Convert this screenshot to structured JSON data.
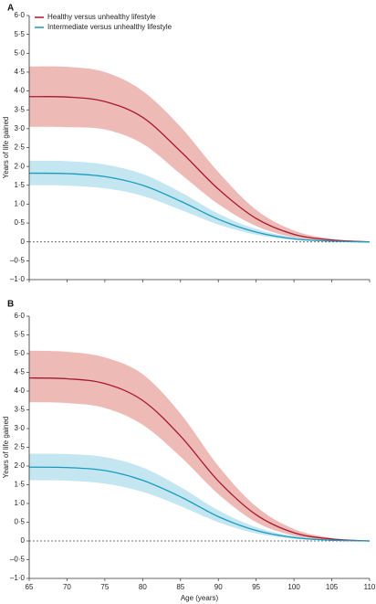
{
  "chart_data": [
    {
      "panel": "A",
      "type": "line",
      "xlabel": "",
      "ylabel": "Years of life gained",
      "xlim": [
        65,
        110
      ],
      "ylim": [
        -1.0,
        6.0
      ],
      "yticks": [
        -1.0,
        -0.5,
        0,
        0.5,
        1.0,
        1.5,
        2.0,
        2.5,
        3.0,
        3.5,
        4.0,
        4.5,
        5.0,
        5.5,
        6.0
      ],
      "ytick_labels": [
        "–1·0",
        "–0·5",
        "0",
        "0·5",
        "1·0",
        "1·5",
        "2·0",
        "2·5",
        "3·0",
        "3·5",
        "4·0",
        "4·5",
        "5·0",
        "5·5",
        "6·0"
      ],
      "reference_line": 0,
      "legend": {
        "position": "top-left",
        "entries": [
          "Healthy versus unhealthy lifestyle",
          "Intermediate versus unhealthy lifestyle"
        ]
      },
      "x": [
        65,
        70,
        75,
        80,
        85,
        90,
        95,
        100,
        105,
        110
      ],
      "series": [
        {
          "name": "Healthy versus unhealthy lifestyle",
          "color": "#a6192e",
          "band_color": "#ecb2ae",
          "values": [
            3.85,
            3.84,
            3.72,
            3.3,
            2.4,
            1.4,
            0.62,
            0.2,
            0.05,
            0.0
          ],
          "lower": [
            3.05,
            3.04,
            2.98,
            2.6,
            1.8,
            1.0,
            0.42,
            0.12,
            0.03,
            0.0
          ],
          "upper": [
            4.65,
            4.64,
            4.5,
            4.0,
            3.05,
            1.85,
            0.85,
            0.3,
            0.08,
            0.01
          ]
        },
        {
          "name": "Intermediate versus unhealthy lifestyle",
          "color": "#1b9bbf",
          "band_color": "#bde3ef",
          "values": [
            1.82,
            1.81,
            1.73,
            1.5,
            1.08,
            0.6,
            0.26,
            0.08,
            0.02,
            0.0
          ],
          "lower": [
            1.5,
            1.49,
            1.42,
            1.22,
            0.85,
            0.46,
            0.19,
            0.05,
            0.01,
            0.0
          ],
          "upper": [
            2.15,
            2.14,
            2.05,
            1.8,
            1.32,
            0.75,
            0.34,
            0.12,
            0.03,
            0.01
          ]
        }
      ]
    },
    {
      "panel": "B",
      "type": "line",
      "xlabel": "Age (years)",
      "ylabel": "Years of life gained",
      "xlim": [
        65,
        110
      ],
      "ylim": [
        -1.0,
        6.0
      ],
      "xticks": [
        65,
        70,
        75,
        80,
        85,
        90,
        95,
        100,
        105,
        110
      ],
      "yticks": [
        -1.0,
        -0.5,
        0,
        0.5,
        1.0,
        1.5,
        2.0,
        2.5,
        3.0,
        3.5,
        4.0,
        4.5,
        5.0,
        5.5,
        6.0
      ],
      "ytick_labels": [
        "–1·0",
        "–0·5",
        "0",
        "0·5",
        "1·0",
        "1·5",
        "2·0",
        "2·5",
        "3·0",
        "3·5",
        "4·0",
        "4·5",
        "5·0",
        "5·5",
        "6·0"
      ],
      "reference_line": 0,
      "x": [
        65,
        70,
        75,
        80,
        85,
        90,
        95,
        100,
        105,
        110
      ],
      "series": [
        {
          "name": "Healthy versus unhealthy lifestyle",
          "color": "#a6192e",
          "band_color": "#ecb2ae",
          "values": [
            4.35,
            4.33,
            4.2,
            3.75,
            2.8,
            1.6,
            0.7,
            0.22,
            0.05,
            0.0
          ],
          "lower": [
            3.7,
            3.68,
            3.55,
            3.1,
            2.25,
            1.25,
            0.5,
            0.14,
            0.03,
            0.0
          ],
          "upper": [
            5.08,
            5.05,
            4.9,
            4.45,
            3.4,
            2.0,
            0.92,
            0.32,
            0.08,
            0.01
          ]
        },
        {
          "name": "Intermediate versus unhealthy lifestyle",
          "color": "#1b9bbf",
          "band_color": "#bde3ef",
          "values": [
            1.97,
            1.96,
            1.88,
            1.62,
            1.18,
            0.65,
            0.28,
            0.09,
            0.02,
            0.0
          ],
          "lower": [
            1.62,
            1.61,
            1.53,
            1.31,
            0.93,
            0.5,
            0.2,
            0.06,
            0.01,
            0.0
          ],
          "upper": [
            2.33,
            2.32,
            2.24,
            1.96,
            1.44,
            0.82,
            0.37,
            0.13,
            0.03,
            0.01
          ]
        }
      ]
    }
  ]
}
